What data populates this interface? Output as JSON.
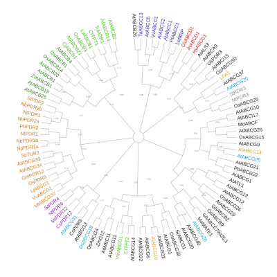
{
  "figure": {
    "type": "circular-phylogenetic-tree",
    "label_colors": {
      "black": "#1a1a1a",
      "green": "#2e8b1f",
      "blue": "#2a2ad0",
      "red": "#e01818",
      "light_orange": "#e8a21a",
      "orange": "#e07818",
      "cyan": "#1aa6d8",
      "purple": "#9b1fd0",
      "grey": "#8c8c8c",
      "lime": "#44c21a",
      "teal": "#1ab0b0"
    },
    "leaves": [
      {
        "text": "AtABCB26",
        "color": "black"
      },
      {
        "text": "TaABCC13",
        "color": "blue"
      },
      {
        "text": "AtABCC5",
        "color": "blue"
      },
      {
        "text": "VvABCC1",
        "color": "blue"
      },
      {
        "text": "AtABCC2",
        "color": "blue"
      },
      {
        "text": "AtABCC1",
        "color": "blue"
      },
      {
        "text": "PtABCC1",
        "color": "blue"
      },
      {
        "text": "LeMRP",
        "color": "blue"
      },
      {
        "text": "OsABCD1",
        "color": "red"
      },
      {
        "text": "AtABCD1",
        "color": "red"
      },
      {
        "text": "HvABCD1",
        "color": "red"
      },
      {
        "text": "AtALS3",
        "color": "black"
      },
      {
        "text": "AtABCA9",
        "color": "black"
      },
      {
        "text": "OsPDR3",
        "color": "black"
      },
      {
        "text": "AtABCI15",
        "color": "black"
      },
      {
        "text": "OsABCG50",
        "color": "black"
      },
      {
        "text": "LPA1",
        "color": "light_orange"
      },
      {
        "text": "AtABCG37",
        "color": "black"
      },
      {
        "text": "AtABCG30",
        "color": "cyan"
      },
      {
        "text": "StPDR3",
        "color": "grey"
      },
      {
        "text": "NtPDR3",
        "color": "grey"
      },
      {
        "text": "OsABCG25",
        "color": "black"
      },
      {
        "text": "AtABCG10",
        "color": "black"
      },
      {
        "text": "AtABCI17",
        "color": "black"
      },
      {
        "text": "MdABCF",
        "color": "black"
      },
      {
        "text": "AtABCG26",
        "color": "black"
      },
      {
        "text": "OsABCG15",
        "color": "black"
      },
      {
        "text": "AtABCG9",
        "color": "black"
      },
      {
        "text": "AtABCG14",
        "color": "light_orange"
      },
      {
        "text": "AtABCG25",
        "color": "cyan"
      },
      {
        "text": "AtABCG21",
        "color": "black"
      },
      {
        "text": "PhABCG22",
        "color": "black"
      },
      {
        "text": "AtABCG1",
        "color": "black"
      },
      {
        "text": "AtATL1",
        "color": "black"
      },
      {
        "text": "AtABCG13",
        "color": "black"
      },
      {
        "text": "AtABCG12",
        "color": "black"
      },
      {
        "text": "OsABCG26",
        "color": "black"
      },
      {
        "text": "AtABCG29",
        "color": "black"
      },
      {
        "text": "GbABCB2",
        "color": "black"
      },
      {
        "text": "OsABCB9",
        "color": "black"
      },
      {
        "text": "GhABCE79035.1",
        "color": "black"
      },
      {
        "text": "MaMATE1",
        "color": "black"
      },
      {
        "text": "AtABCG36",
        "color": "cyan"
      },
      {
        "text": "AtABCG40",
        "color": "black"
      },
      {
        "text": "AtABCG20",
        "color": "black"
      },
      {
        "text": "StABCG1",
        "color": "black"
      },
      {
        "text": "OsABCG38",
        "color": "black"
      },
      {
        "text": "AtABCG1",
        "color": "black"
      },
      {
        "text": "AtABCG31",
        "color": "black"
      },
      {
        "text": "AtABCG16",
        "color": "light_orange"
      },
      {
        "text": "AtABCG6",
        "color": "black"
      },
      {
        "text": "AtABCG32",
        "color": "black"
      },
      {
        "text": "AtABCG14",
        "color": "black"
      },
      {
        "text": "CrTPT2",
        "color": "lime"
      },
      {
        "text": "VmABCG1",
        "color": "lime"
      },
      {
        "text": "AtABCG11",
        "color": "black"
      },
      {
        "text": "AtWBC11",
        "color": "black"
      },
      {
        "text": "ZmG12",
        "color": "black"
      },
      {
        "text": "OsABCG4",
        "color": "black"
      },
      {
        "text": "OsABCG18",
        "color": "cyan"
      },
      {
        "text": "AtABCG3",
        "color": "black"
      },
      {
        "text": "CsPDR8",
        "color": "black"
      },
      {
        "text": "AtABCG31",
        "color": "cyan"
      },
      {
        "text": "CsPDR12",
        "color": "purple"
      },
      {
        "text": "MtPDR12",
        "color": "purple"
      },
      {
        "text": "NtPDR6",
        "color": "purple"
      },
      {
        "text": "StPDR4",
        "color": "purple"
      },
      {
        "text": "MtABCG20",
        "color": "orange"
      },
      {
        "text": "VvABCG1",
        "color": "orange"
      },
      {
        "text": "LjABCG1",
        "color": "orange"
      },
      {
        "text": "OsPDR9",
        "color": "orange"
      },
      {
        "text": "GmPDR12",
        "color": "orange"
      },
      {
        "text": "AtABCG34",
        "color": "orange"
      },
      {
        "text": "AtABCG39",
        "color": "orange"
      },
      {
        "text": "SpTUR2",
        "color": "orange"
      },
      {
        "text": "NpPDR1a",
        "color": "orange"
      },
      {
        "text": "NbPDR1b",
        "color": "orange"
      },
      {
        "text": "NtPDR1",
        "color": "orange"
      },
      {
        "text": "PhPDR2",
        "color": "orange"
      },
      {
        "text": "NbPDR2a",
        "color": "orange"
      },
      {
        "text": "NtPDR1",
        "color": "orange"
      },
      {
        "text": "NbPDR2b",
        "color": "orange"
      },
      {
        "text": "StPDR2",
        "color": "orange"
      },
      {
        "text": "AtABCB25",
        "color": "green"
      },
      {
        "text": "AtABCB19",
        "color": "green"
      },
      {
        "text": "ZmABCB1",
        "color": "green"
      },
      {
        "text": "AtABCB1",
        "color": "green"
      },
      {
        "text": "AtABCB20",
        "color": "green"
      },
      {
        "text": "OsABCB14",
        "color": "green"
      },
      {
        "text": "OsABCB1",
        "color": "green"
      },
      {
        "text": "AtABCB4",
        "color": "green"
      },
      {
        "text": "CjABCB1",
        "color": "lime"
      },
      {
        "text": "AtABCB21",
        "color": "lime"
      },
      {
        "text": "OsABCB3",
        "color": "lime"
      },
      {
        "text": "LvABCB1",
        "color": "lime"
      },
      {
        "text": "CrTPT1",
        "color": "lime"
      },
      {
        "text": "ToMDR1",
        "color": "lime"
      },
      {
        "text": "AtABCB14",
        "color": "lime"
      },
      {
        "text": "AtABCB2",
        "color": "lime"
      }
    ],
    "support_values": [
      "0.99",
      "0.92",
      "0.89",
      "0.99",
      "0.50",
      "0.98",
      "0.95",
      "0.93",
      "0.95",
      "0.99",
      "0.91",
      "0.84",
      "0.97",
      "0.54",
      "0.99",
      "0.62",
      "0.99",
      "0.85",
      "0.48",
      "0.81",
      "0.85",
      "0.57",
      "0.97",
      "0.92",
      "0.77",
      "0.99",
      "0.62",
      "0.68",
      "0.71",
      "0.54",
      "0.99",
      "0.44",
      "0.95",
      "0.97",
      "0.68",
      "0.88",
      "0.74",
      "0.99",
      "0.84",
      "0.70"
    ]
  }
}
